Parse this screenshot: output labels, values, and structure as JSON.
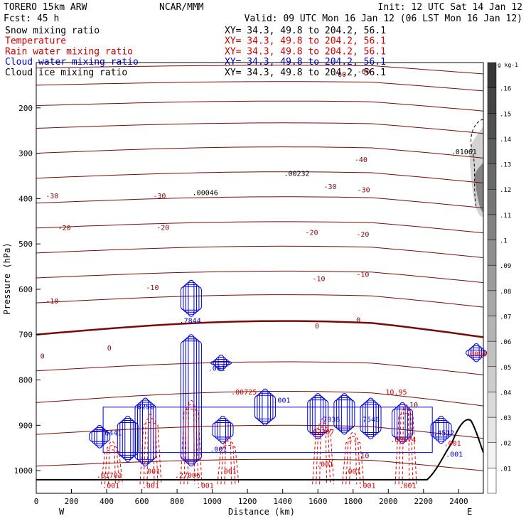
{
  "header": {
    "model": "TORERO  15km ARW",
    "org": "NCAR/MMM",
    "init": "Init: 12 UTC Sat 14 Jan 12",
    "fcst": "Fcst:   45 h",
    "valid": "Valid: 09 UTC Mon 16 Jan 12 (06 LST Mon 16 Jan 12)"
  },
  "fields": [
    {
      "name": "Snow mixing ratio",
      "xy": "XY=  34.3, 49.8 to 204.2, 56.1",
      "color": "#000000"
    },
    {
      "name": "Temperature",
      "xy": "XY=  34.3, 49.8 to 204.2, 56.1",
      "color": "#cc0000"
    },
    {
      "name": "Rain water mixing ratio",
      "xy": "XY=  34.3, 49.8 to 204.2, 56.1",
      "color": "#cc0000"
    },
    {
      "name": "Cloud water mixing ratio",
      "xy": "XY=  34.3, 49.8 to 204.2, 56.1",
      "color": "#0000cc"
    },
    {
      "name": "Cloud ice mixing ratio",
      "xy": "XY=  34.3, 49.8 to 204.2, 56.1",
      "color": "#000000"
    }
  ],
  "colors": {
    "temperature": "#7a0a0a",
    "rain": "#dd0000",
    "cloud_water": "#0000dd",
    "terrain": "#000000"
  },
  "chart_data": {
    "type": "contour",
    "xlabel": "Distance (km)",
    "ylabel": "Pressure (hPa)",
    "xlim": [
      0,
      2540
    ],
    "ylim": [
      1050,
      100
    ],
    "xticks": [
      0,
      200,
      400,
      600,
      800,
      1000,
      1200,
      1400,
      1600,
      1800,
      2000,
      2200,
      2400
    ],
    "yticks": [
      200,
      300,
      400,
      500,
      600,
      700,
      800,
      900,
      1000
    ],
    "left_end_label": "W",
    "right_end_label": "E",
    "temperature_contour_labels": [
      {
        "text": "-60",
        "x": 1725,
        "y": 125
      },
      {
        "text": "-60",
        "x": 1860,
        "y": 119
      },
      {
        "text": "-40",
        "x": 1845,
        "y": 313
      },
      {
        "text": "-30",
        "x": 90,
        "y": 393
      },
      {
        "text": "-30",
        "x": 700,
        "y": 393
      },
      {
        "text": "-30",
        "x": 1670,
        "y": 373
      },
      {
        "text": "-30",
        "x": 1860,
        "y": 380
      },
      {
        "text": "-20",
        "x": 160,
        "y": 464
      },
      {
        "text": "-20",
        "x": 720,
        "y": 463
      },
      {
        "text": "-20",
        "x": 1565,
        "y": 474
      },
      {
        "text": "-20",
        "x": 1855,
        "y": 478
      },
      {
        "text": "-10",
        "x": 90,
        "y": 625
      },
      {
        "text": "-10",
        "x": 660,
        "y": 595
      },
      {
        "text": "-10",
        "x": 1605,
        "y": 576
      },
      {
        "text": "-10",
        "x": 1855,
        "y": 566
      },
      {
        "text": "0",
        "x": 35,
        "y": 747
      },
      {
        "text": "0",
        "x": 415,
        "y": 729
      },
      {
        "text": "0",
        "x": 1595,
        "y": 680
      },
      {
        "text": "0",
        "x": 1830,
        "y": 667
      },
      {
        "text": "10",
        "x": 2145,
        "y": 854
      },
      {
        "text": "-10",
        "x": 1855,
        "y": 966
      }
    ],
    "maxima_labels": [
      {
        "text": ".01061",
        "x": 2430,
        "y": 296,
        "color": "#000000"
      },
      {
        "text": ".00232",
        "x": 1480,
        "y": 344,
        "color": "#000000"
      },
      {
        "text": ".00046",
        "x": 960,
        "y": 386,
        "color": "#000000"
      },
      {
        "text": ".7844",
        "x": 875,
        "y": 668,
        "color": "#0000cc"
      },
      {
        "text": ".001",
        "x": 1025,
        "y": 773,
        "color": "#0000cc"
      },
      {
        "text": ".001",
        "x": 1395,
        "y": 844,
        "color": "#0000cc"
      },
      {
        "text": ".8258",
        "x": 610,
        "y": 858,
        "color": "#0000cc"
      },
      {
        "text": ".6441",
        "x": 425,
        "y": 916,
        "color": "#0000cc"
      },
      {
        "text": ".001",
        "x": 1035,
        "y": 952,
        "color": "#0000cc"
      },
      {
        "text": ".7036",
        "x": 1665,
        "y": 886,
        "color": "#0000cc"
      },
      {
        "text": ".7546",
        "x": 1890,
        "y": 886,
        "color": "#0000cc"
      },
      {
        "text": ".4512",
        "x": 2315,
        "y": 916,
        "color": "#0000cc"
      },
      {
        "text": ".001",
        "x": 2375,
        "y": 963,
        "color": "#0000cc"
      },
      {
        "text": ".00725",
        "x": 1180,
        "y": 826,
        "color": "#cc0000"
      },
      {
        "text": "10.95",
        "x": 2045,
        "y": 826,
        "color": "#cc0000"
      },
      {
        "text": ".02207",
        "x": 1620,
        "y": 914,
        "color": "#cc0000"
      },
      {
        "text": ".00674",
        "x": 2085,
        "y": 931,
        "color": "#cc0000"
      },
      {
        "text": ".001",
        "x": 2365,
        "y": 939,
        "color": "#cc0000"
      },
      {
        "text": ".01701",
        "x": 415,
        "y": 1009,
        "color": "#cc0000"
      },
      {
        "text": ".27006",
        "x": 860,
        "y": 1009,
        "color": "#cc0000"
      },
      {
        "text": ".001",
        "x": 1640,
        "y": 985,
        "color": "#cc0000"
      },
      {
        "text": ".001",
        "x": 1795,
        "y": 1001,
        "color": "#cc0000"
      },
      {
        "text": ".001",
        "x": 1090,
        "y": 1001,
        "color": "#cc0000"
      },
      {
        "text": ".001",
        "x": 655,
        "y": 1001,
        "color": "#cc0000"
      },
      {
        "text": ".001",
        "x": 425,
        "y": 1032,
        "color": "#cc0000"
      },
      {
        "text": ".001",
        "x": 650,
        "y": 1032,
        "color": "#cc0000"
      },
      {
        "text": ".001",
        "x": 960,
        "y": 1032,
        "color": "#cc0000"
      },
      {
        "text": ".001",
        "x": 1880,
        "y": 1032,
        "color": "#cc0000"
      },
      {
        "text": ".001",
        "x": 2110,
        "y": 1032,
        "color": "#cc0000"
      },
      {
        "text": ".0000",
        "x": 2500,
        "y": 742,
        "color": "#cc0000"
      }
    ],
    "colorbar": {
      "unit": "g kg-1",
      "ticks": [
        ".01",
        ".02",
        ".03",
        ".04",
        ".05",
        ".06",
        ".07",
        ".08",
        ".09",
        ".1",
        ".11",
        ".12",
        ".13",
        ".14",
        ".15",
        ".16"
      ]
    }
  }
}
